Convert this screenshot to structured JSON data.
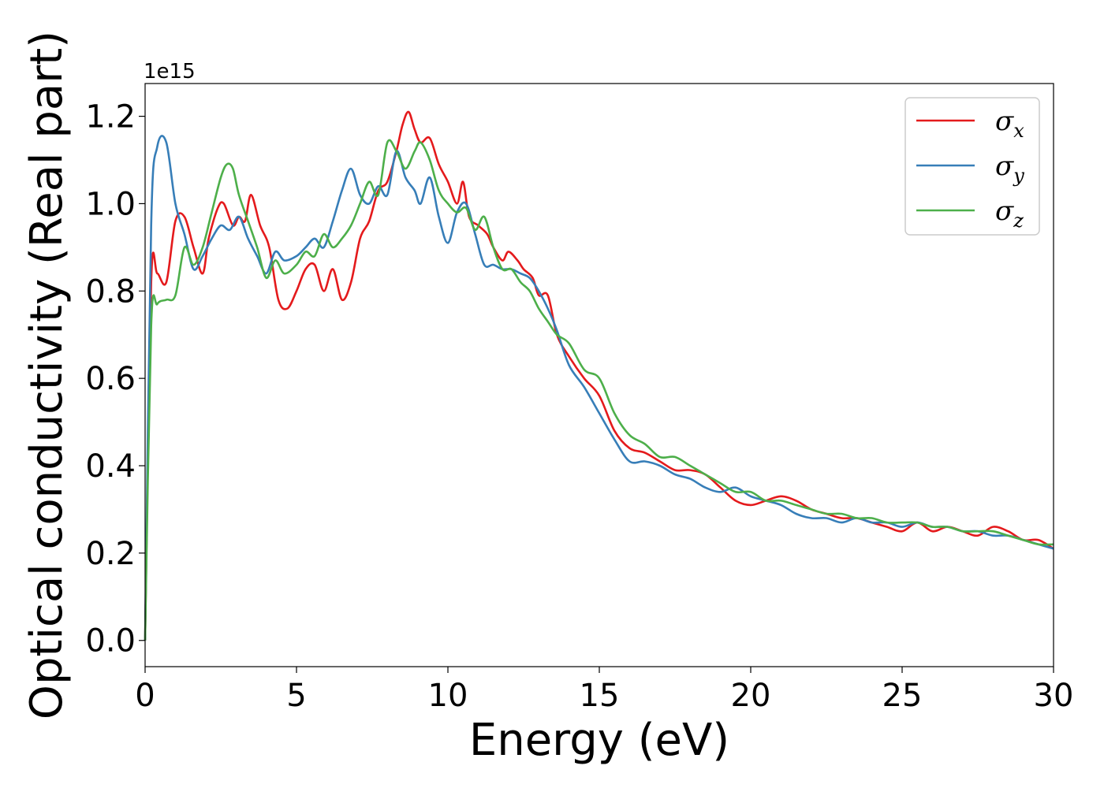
{
  "chart_data": {
    "type": "line",
    "title": "",
    "xlabel": "Energy (eV)",
    "ylabel": "Optical conductivity (Real part)",
    "y_offset_label": "1e15",
    "xlim": [
      0,
      30
    ],
    "ylim": [
      -0.06,
      1.275
    ],
    "xticks": [
      "0",
      "5",
      "10",
      "15",
      "20",
      "25",
      "30"
    ],
    "yticks": [
      "0.0",
      "0.2",
      "0.4",
      "0.6",
      "0.8",
      "1.0",
      "1.2"
    ],
    "grid": false,
    "legend_position": "top-right",
    "series": [
      {
        "name": "σx",
        "symbol": "σ",
        "subscript": "x",
        "color": "#e41a1c",
        "x": [
          0,
          0.2,
          0.4,
          0.7,
          1.0,
          1.3,
          1.6,
          1.9,
          2.1,
          2.4,
          2.6,
          2.9,
          3.1,
          3.3,
          3.5,
          3.8,
          4.1,
          4.4,
          4.7,
          5.0,
          5.3,
          5.6,
          5.9,
          6.2,
          6.5,
          6.8,
          7.1,
          7.4,
          7.7,
          8.0,
          8.3,
          8.5,
          8.7,
          8.9,
          9.1,
          9.4,
          9.7,
          10.0,
          10.3,
          10.5,
          10.7,
          11.0,
          11.3,
          11.5,
          11.8,
          12.0,
          12.3,
          12.5,
          12.8,
          13.0,
          13.3,
          13.6,
          14.0,
          14.5,
          15.0,
          15.5,
          16.0,
          16.5,
          17.0,
          17.5,
          18.0,
          18.5,
          19.0,
          19.5,
          20.0,
          20.5,
          21.0,
          21.5,
          22.0,
          22.5,
          23.0,
          23.5,
          24.0,
          24.5,
          25.0,
          25.5,
          26.0,
          26.5,
          27.0,
          27.5,
          28.0,
          28.5,
          29.0,
          29.5,
          30.0
        ],
        "y": [
          0.0,
          0.82,
          0.84,
          0.82,
          0.96,
          0.97,
          0.9,
          0.84,
          0.92,
          0.99,
          1.0,
          0.95,
          0.97,
          0.96,
          1.02,
          0.95,
          0.9,
          0.78,
          0.76,
          0.8,
          0.85,
          0.86,
          0.8,
          0.85,
          0.78,
          0.82,
          0.92,
          0.96,
          1.03,
          1.05,
          1.12,
          1.18,
          1.21,
          1.17,
          1.14,
          1.15,
          1.09,
          1.05,
          1.0,
          1.05,
          0.97,
          0.95,
          0.93,
          0.9,
          0.87,
          0.89,
          0.87,
          0.85,
          0.83,
          0.79,
          0.79,
          0.7,
          0.65,
          0.6,
          0.56,
          0.48,
          0.44,
          0.43,
          0.41,
          0.39,
          0.39,
          0.38,
          0.35,
          0.32,
          0.31,
          0.32,
          0.33,
          0.32,
          0.3,
          0.29,
          0.28,
          0.28,
          0.27,
          0.26,
          0.25,
          0.27,
          0.25,
          0.26,
          0.25,
          0.24,
          0.26,
          0.25,
          0.23,
          0.23,
          0.21
        ]
      },
      {
        "name": "σy",
        "symbol": "σ",
        "subscript": "y",
        "color": "#377eb8",
        "x": [
          0,
          0.2,
          0.4,
          0.7,
          1.0,
          1.3,
          1.6,
          1.9,
          2.2,
          2.5,
          2.8,
          3.1,
          3.4,
          3.7,
          4.0,
          4.3,
          4.6,
          5.0,
          5.3,
          5.6,
          5.9,
          6.2,
          6.5,
          6.8,
          7.1,
          7.4,
          7.7,
          8.0,
          8.3,
          8.6,
          8.9,
          9.1,
          9.4,
          9.7,
          10.0,
          10.3,
          10.6,
          10.9,
          11.2,
          11.5,
          11.8,
          12.1,
          12.4,
          12.7,
          13.0,
          13.3,
          13.6,
          14.0,
          14.5,
          15.0,
          15.5,
          16.0,
          16.5,
          17.0,
          17.5,
          18.0,
          18.5,
          19.0,
          19.5,
          20.0,
          20.5,
          21.0,
          21.5,
          22.0,
          22.5,
          23.0,
          23.5,
          24.0,
          24.5,
          25.0,
          25.5,
          26.0,
          26.5,
          27.0,
          27.5,
          28.0,
          28.5,
          29.0,
          29.5,
          30.0
        ],
        "y": [
          0.0,
          0.95,
          1.13,
          1.14,
          1.0,
          0.93,
          0.85,
          0.88,
          0.92,
          0.95,
          0.94,
          0.97,
          0.92,
          0.88,
          0.84,
          0.89,
          0.87,
          0.88,
          0.9,
          0.92,
          0.9,
          0.96,
          1.03,
          1.08,
          1.02,
          1.0,
          1.04,
          1.02,
          1.12,
          1.06,
          1.03,
          1.0,
          1.06,
          0.97,
          0.91,
          0.98,
          1.0,
          0.93,
          0.86,
          0.86,
          0.85,
          0.85,
          0.84,
          0.83,
          0.8,
          0.76,
          0.71,
          0.63,
          0.58,
          0.52,
          0.46,
          0.41,
          0.41,
          0.4,
          0.38,
          0.37,
          0.35,
          0.34,
          0.35,
          0.33,
          0.32,
          0.31,
          0.29,
          0.28,
          0.28,
          0.27,
          0.28,
          0.27,
          0.27,
          0.26,
          0.27,
          0.26,
          0.26,
          0.25,
          0.25,
          0.24,
          0.24,
          0.23,
          0.22,
          0.21
        ]
      },
      {
        "name": "σz",
        "symbol": "σ",
        "subscript": "z",
        "color": "#4daf4a",
        "x": [
          0,
          0.2,
          0.4,
          0.7,
          1.0,
          1.3,
          1.6,
          1.9,
          2.2,
          2.5,
          2.7,
          2.9,
          3.1,
          3.4,
          3.7,
          4.0,
          4.3,
          4.6,
          5.0,
          5.3,
          5.6,
          5.9,
          6.2,
          6.5,
          6.8,
          7.1,
          7.4,
          7.7,
          8.0,
          8.3,
          8.6,
          8.9,
          9.1,
          9.4,
          9.7,
          10.0,
          10.3,
          10.6,
          10.9,
          11.2,
          11.5,
          11.8,
          12.1,
          12.4,
          12.7,
          13.0,
          13.3,
          13.6,
          14.0,
          14.5,
          15.0,
          15.5,
          16.0,
          16.5,
          17.0,
          17.5,
          18.0,
          18.5,
          19.0,
          19.5,
          20.0,
          20.5,
          21.0,
          21.5,
          22.0,
          22.5,
          23.0,
          23.5,
          24.0,
          24.5,
          25.0,
          25.5,
          26.0,
          26.5,
          27.0,
          27.5,
          28.0,
          28.5,
          29.0,
          29.5,
          30.0
        ],
        "y": [
          0.0,
          0.72,
          0.77,
          0.78,
          0.79,
          0.9,
          0.86,
          0.9,
          0.98,
          1.06,
          1.09,
          1.08,
          1.02,
          0.96,
          0.9,
          0.83,
          0.87,
          0.84,
          0.86,
          0.89,
          0.88,
          0.93,
          0.9,
          0.92,
          0.95,
          1.0,
          1.05,
          1.02,
          1.14,
          1.12,
          1.08,
          1.12,
          1.14,
          1.1,
          1.03,
          1.0,
          0.98,
          0.99,
          0.94,
          0.97,
          0.9,
          0.85,
          0.85,
          0.82,
          0.8,
          0.76,
          0.73,
          0.7,
          0.68,
          0.62,
          0.6,
          0.52,
          0.47,
          0.45,
          0.42,
          0.42,
          0.4,
          0.38,
          0.36,
          0.34,
          0.34,
          0.32,
          0.32,
          0.31,
          0.3,
          0.29,
          0.29,
          0.28,
          0.28,
          0.27,
          0.27,
          0.27,
          0.26,
          0.26,
          0.25,
          0.25,
          0.25,
          0.24,
          0.23,
          0.22,
          0.22
        ]
      }
    ]
  }
}
